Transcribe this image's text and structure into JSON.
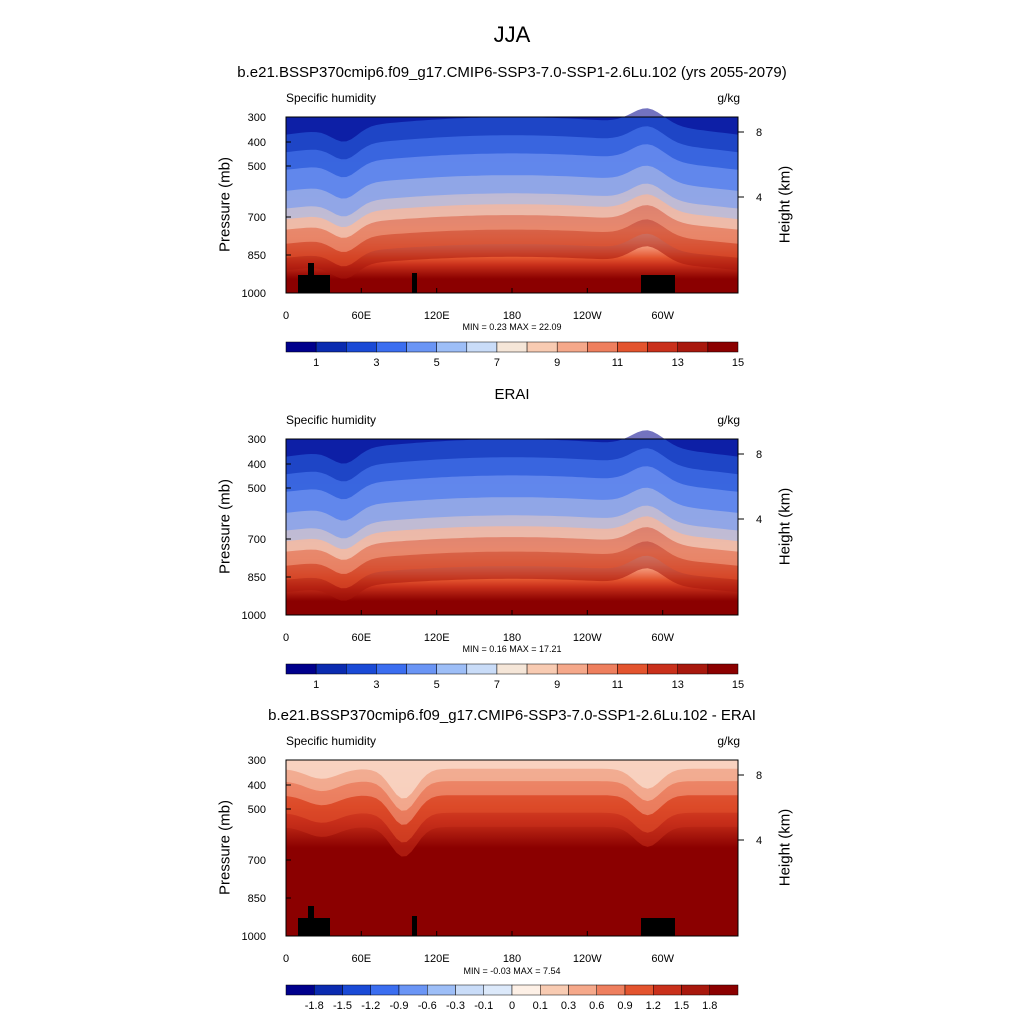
{
  "figure": {
    "title": "JJA",
    "panel1_title": "b.e21.BSSP370cmip6.f09_g17.CMIP6-SSP3-7.0-SSP1-2.6Lu.102 (yrs 2055-2079)",
    "panel2_title": "ERAI",
    "panel3_title": "b.e21.BSSP370cmip6.f09_g17.CMIP6-SSP3-7.0-SSP1-2.6Lu.102 - ERAI"
  },
  "chart_data": [
    {
      "type": "heatmap",
      "left_label": "Specific humidity",
      "right_label": "g/kg",
      "ylabel": "Pressure (mb)",
      "ylabel_right": "Height (km)",
      "xticks": [
        "0",
        "60E",
        "120E",
        "180",
        "120W",
        "60W"
      ],
      "yticks": [
        "300",
        "400",
        "500",
        "700",
        "850",
        "1000"
      ],
      "yticks_right": [
        "8",
        "4"
      ],
      "min_max": "MIN =   0.23  MAX =  22.09",
      "colorbar_labels": [
        "1",
        "3",
        "5",
        "7",
        "9",
        "11",
        "13",
        "15"
      ],
      "colorbar_colors": [
        "#00008c",
        "#0a2bb0",
        "#1a4ad6",
        "#3b6ef0",
        "#6a95f5",
        "#9dbef7",
        "#c9dcf8",
        "#f5e6d8",
        "#f8cbb2",
        "#f5a88a",
        "#ee7f5e",
        "#e3542e",
        "#c9301b",
        "#a8180d",
        "#8b0000"
      ],
      "ylim": [
        1000,
        300
      ],
      "xlim": [
        0,
        360
      ]
    },
    {
      "type": "heatmap",
      "left_label": "Specific humidity",
      "right_label": "g/kg",
      "ylabel": "Pressure (mb)",
      "ylabel_right": "Height (km)",
      "xticks": [
        "0",
        "60E",
        "120E",
        "180",
        "120W",
        "60W"
      ],
      "yticks": [
        "300",
        "400",
        "500",
        "700",
        "850",
        "1000"
      ],
      "yticks_right": [
        "8",
        "4"
      ],
      "min_max": "MIN =   0.16  MAX =  17.21",
      "colorbar_labels": [
        "1",
        "3",
        "5",
        "7",
        "9",
        "11",
        "13",
        "15"
      ],
      "colorbar_colors": [
        "#00008c",
        "#0a2bb0",
        "#1a4ad6",
        "#3b6ef0",
        "#6a95f5",
        "#9dbef7",
        "#c9dcf8",
        "#f5e6d8",
        "#f8cbb2",
        "#f5a88a",
        "#ee7f5e",
        "#e3542e",
        "#c9301b",
        "#a8180d",
        "#8b0000"
      ],
      "ylim": [
        1000,
        300
      ],
      "xlim": [
        0,
        360
      ]
    },
    {
      "type": "heatmap",
      "left_label": "Specific humidity",
      "right_label": "g/kg",
      "ylabel": "Pressure (mb)",
      "ylabel_right": "Height (km)",
      "xticks": [
        "0",
        "60E",
        "120E",
        "180",
        "120W",
        "60W"
      ],
      "yticks": [
        "300",
        "400",
        "500",
        "700",
        "850",
        "1000"
      ],
      "yticks_right": [
        "8",
        "4"
      ],
      "min_max": "MIN =  -0.03  MAX =   7.54",
      "colorbar_labels": [
        "-1.8",
        "-1.5",
        "-1.2",
        "-0.9",
        "-0.6",
        "-0.3",
        "-0.1",
        "0",
        "0.1",
        "0.3",
        "0.6",
        "0.9",
        "1.2",
        "1.5",
        "1.8"
      ],
      "colorbar_colors": [
        "#00008c",
        "#0a2bb0",
        "#1a4ad6",
        "#3b6ef0",
        "#6a95f5",
        "#9dbef7",
        "#c9dcf8",
        "#dce9fa",
        "#fdf0e6",
        "#f8cbb2",
        "#f5a88a",
        "#ee7f5e",
        "#e3542e",
        "#c9301b",
        "#a8180d",
        "#8b0000"
      ],
      "ylim": [
        1000,
        300
      ],
      "xlim": [
        0,
        360
      ]
    }
  ]
}
